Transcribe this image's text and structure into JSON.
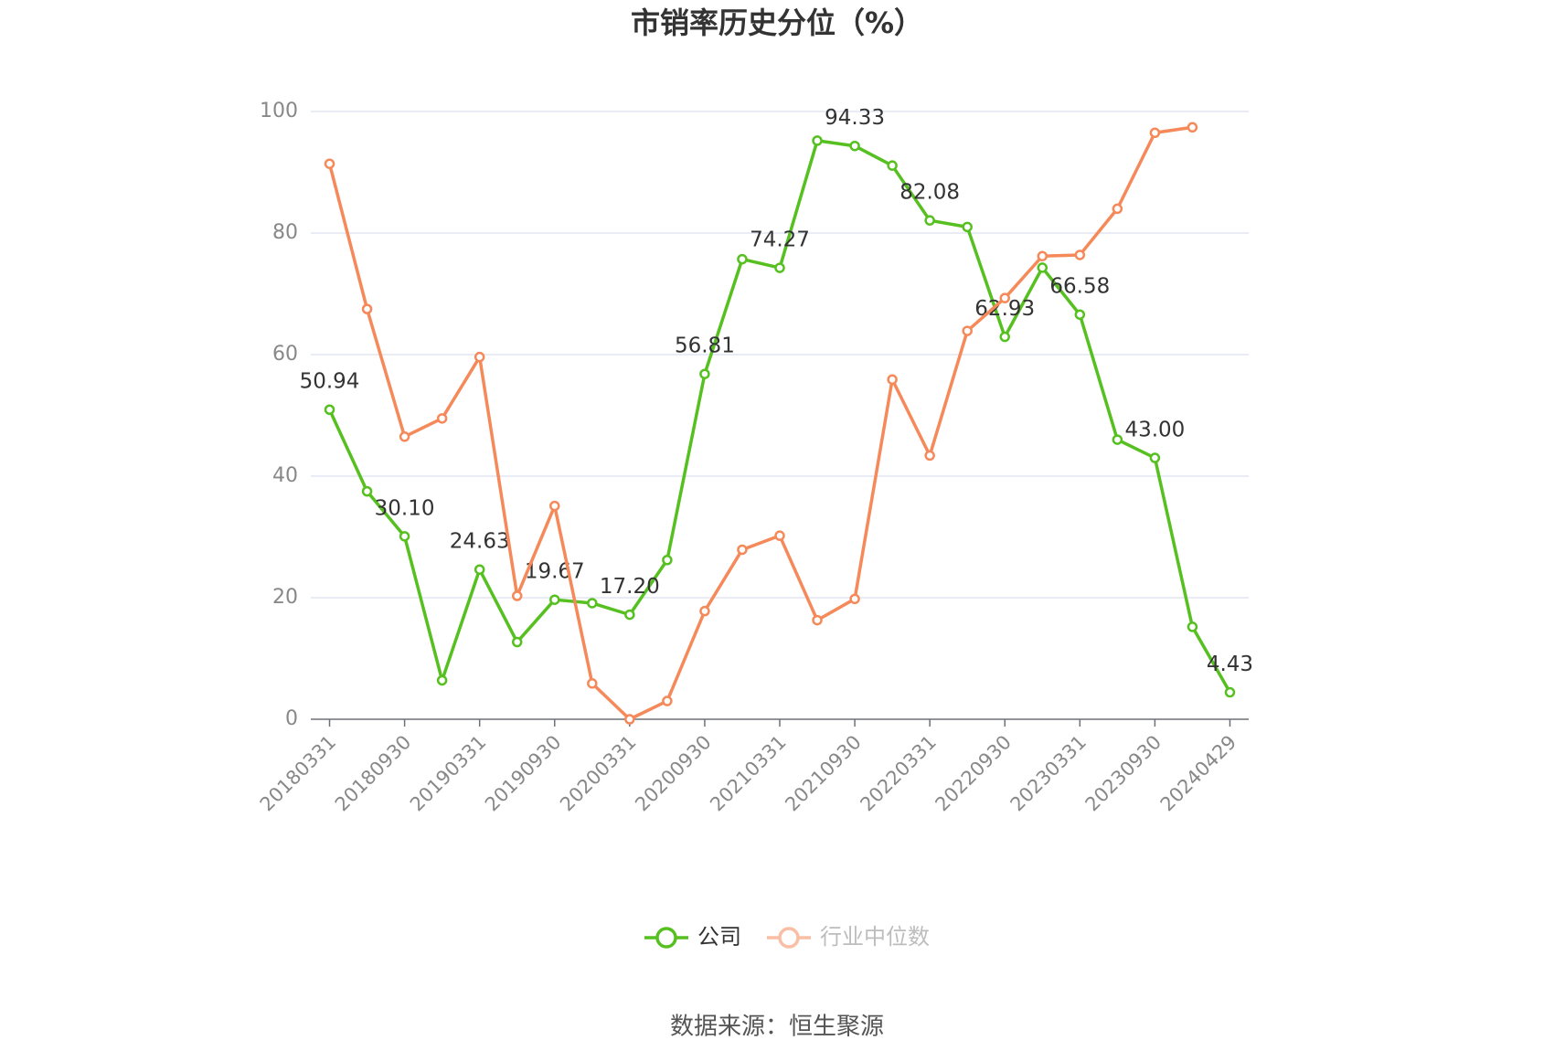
{
  "chart_data": {
    "type": "line",
    "title": "市销率历史分位（%）",
    "categories": [
      "20180331",
      null,
      "20180930",
      null,
      "20190331",
      null,
      "20190930",
      null,
      "20200331",
      null,
      "20200930",
      null,
      "20210331",
      null,
      "20210930",
      null,
      "20220331",
      null,
      "20220930",
      null,
      "20230331",
      null,
      "20230930",
      null,
      "20240429"
    ],
    "series": [
      {
        "name": "公司",
        "color": "#56c020",
        "values": [
          50.94,
          37.5,
          30.1,
          6.4,
          24.63,
          12.7,
          19.67,
          19.1,
          17.2,
          26.2,
          56.81,
          75.7,
          74.27,
          95.2,
          94.33,
          91.1,
          82.08,
          81.0,
          62.93,
          74.3,
          66.58,
          46.0,
          43.0,
          15.2,
          4.43
        ],
        "value_labels": [
          "50.94",
          null,
          "30.10",
          null,
          "24.63",
          null,
          "19.67",
          null,
          "17.20",
          null,
          "56.81",
          null,
          "74.27",
          null,
          "94.33",
          null,
          "82.08",
          null,
          "62.93",
          null,
          "66.58",
          null,
          "43.00",
          null,
          "4.43"
        ]
      },
      {
        "name": "行业中位数",
        "color": "#f5895a",
        "values": [
          91.4,
          67.5,
          46.5,
          49.5,
          59.6,
          20.3,
          35.1,
          5.9,
          0,
          3.0,
          17.8,
          27.9,
          30.2,
          16.3,
          19.8,
          55.9,
          43.4,
          63.9,
          69.3,
          76.2,
          76.4,
          84.0,
          96.5,
          97.4,
          null
        ]
      }
    ],
    "ylim": [
      0,
      100
    ],
    "yticks": [
      0,
      20,
      40,
      60,
      80,
      100
    ],
    "grid": true,
    "source": "数据来源：恒生聚源"
  }
}
